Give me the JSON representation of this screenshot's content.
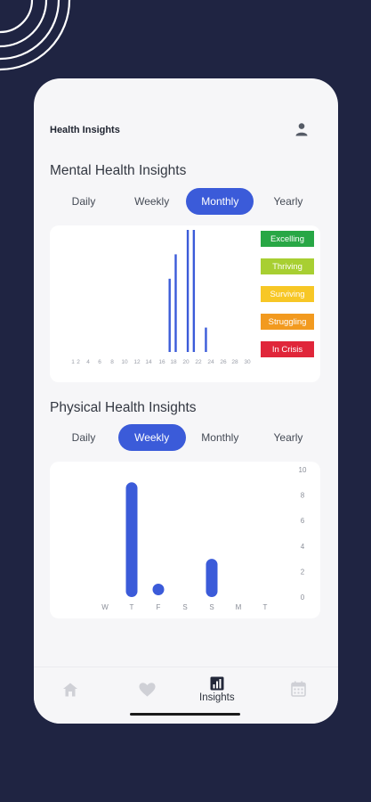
{
  "app": {
    "title": "Health Insights"
  },
  "mental": {
    "title": "Mental Health Insights",
    "tabs": [
      "Daily",
      "Weekly",
      "Monthly",
      "Yearly"
    ],
    "active_tab": "Monthly",
    "legend": [
      {
        "label": "Excelling",
        "color": "#28a745"
      },
      {
        "label": "Thriving",
        "color": "#a8cf32"
      },
      {
        "label": "Surviving",
        "color": "#f7c726"
      },
      {
        "label": "Struggling",
        "color": "#f29a1f"
      },
      {
        "label": "In Crisis",
        "color": "#e0263a"
      }
    ]
  },
  "physical": {
    "title": "Physical Health Insights",
    "tabs": [
      "Daily",
      "Weekly",
      "Monthly",
      "Yearly"
    ],
    "active_tab": "Weekly"
  },
  "nav": {
    "items": [
      {
        "name": "home",
        "icon": "home-icon",
        "label": ""
      },
      {
        "name": "health",
        "icon": "heart-icon",
        "label": ""
      },
      {
        "name": "insights",
        "icon": "bar-chart-icon",
        "label": "Insights"
      },
      {
        "name": "calendar",
        "icon": "calendar-icon",
        "label": ""
      }
    ],
    "active": "insights"
  },
  "colors": {
    "accent": "#3b5bd9",
    "background": "#1f2442"
  },
  "chart_data": [
    {
      "type": "bar",
      "x_ticks": [
        "1",
        "2",
        "4",
        "6",
        "8",
        "10",
        "12",
        "14",
        "16",
        "18",
        "20",
        "22",
        "24",
        "26",
        "28",
        "30"
      ],
      "x": [
        17,
        18,
        20,
        21,
        23
      ],
      "values": [
        3,
        4,
        5,
        5,
        1
      ],
      "ylim": [
        0,
        5
      ],
      "grid": false,
      "legend_position": "right"
    },
    {
      "type": "bar",
      "categories": [
        "W",
        "T",
        "F",
        "S",
        "S",
        "M",
        "T"
      ],
      "values": [
        0,
        9,
        0.5,
        0,
        3,
        0,
        0
      ],
      "y_ticks": [
        "10",
        "8",
        "6",
        "4",
        "2",
        "0"
      ],
      "ylim": [
        0,
        10
      ],
      "y_axis_position": "right",
      "grid": false
    }
  ]
}
